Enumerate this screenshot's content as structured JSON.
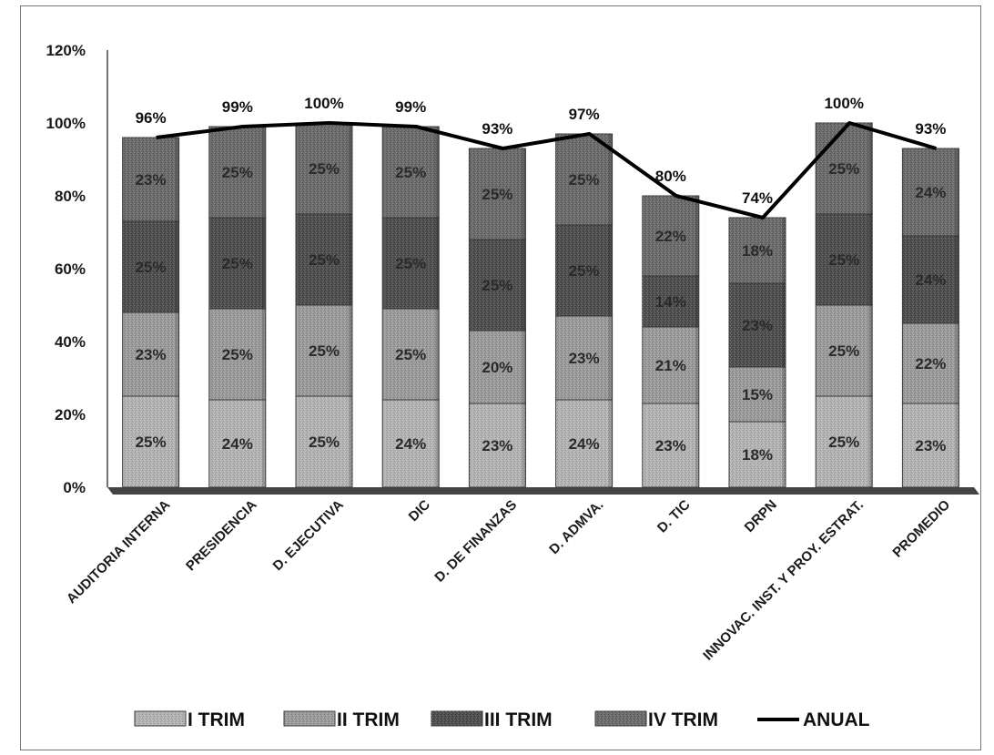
{
  "chart_data": {
    "type": "bar",
    "stacked": true,
    "categories": [
      "AUDITORIA INTERNA",
      "PRESIDENCIA",
      "D. EJECUTIVA",
      "DIC",
      "D. DE FINANZAS",
      "D. ADMVA.",
      "D. TIC",
      "DRPN",
      "INNOVAC. INST. Y PROY. ESTRAT.",
      "PROMEDIO"
    ],
    "series": [
      {
        "name": "I TRIM",
        "values": [
          25,
          24,
          25,
          24,
          23,
          24,
          23,
          18,
          25,
          23
        ],
        "color": "#b3b3b3"
      },
      {
        "name": "II TRIM",
        "values": [
          23,
          25,
          25,
          25,
          20,
          23,
          21,
          15,
          25,
          22
        ],
        "color": "#9a9a9a"
      },
      {
        "name": "III TRIM",
        "values": [
          25,
          25,
          25,
          25,
          25,
          25,
          14,
          23,
          25,
          24
        ],
        "color": "#4e4e4e"
      },
      {
        "name": "IV TRIM",
        "values": [
          23,
          25,
          25,
          25,
          25,
          25,
          22,
          18,
          25,
          24
        ],
        "color": "#6a6a6a"
      }
    ],
    "line_series": {
      "name": "ANUAL",
      "values": [
        96,
        99,
        100,
        99,
        93,
        97,
        80,
        74,
        100,
        93
      ],
      "color": "#000000"
    },
    "y_ticks": [
      "0%",
      "20%",
      "40%",
      "60%",
      "80%",
      "100%",
      "120%"
    ],
    "ylim": [
      0,
      120
    ],
    "value_suffix": "%",
    "grid": false,
    "legend_position": "bottom"
  }
}
